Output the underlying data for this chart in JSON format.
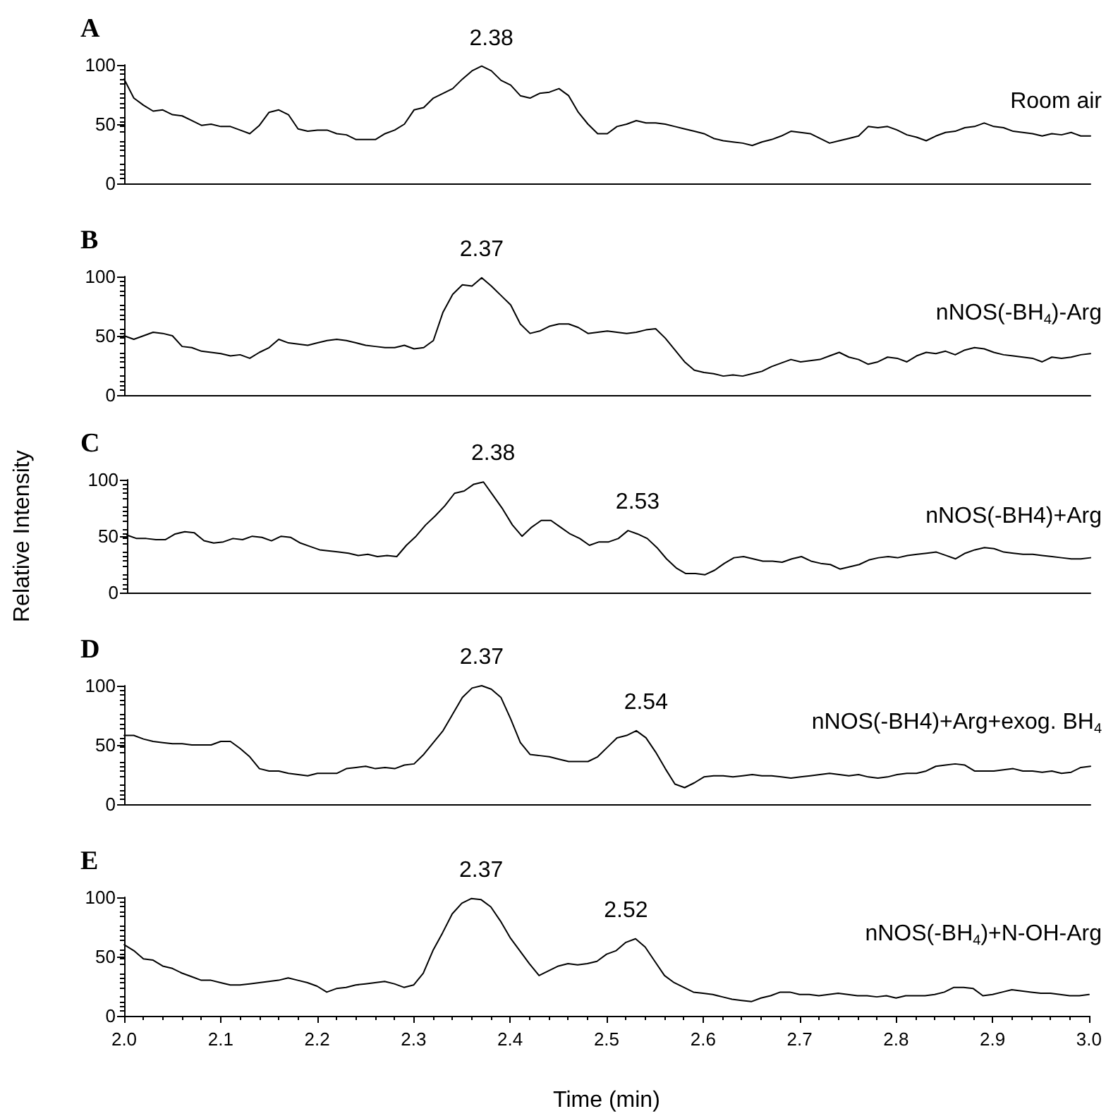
{
  "chart_data": [
    {
      "type": "line",
      "title": "A",
      "xlim": [
        2,
        3
      ],
      "ylim": [
        0,
        100
      ],
      "yticks": [
        0,
        50,
        100
      ],
      "tick_labels": "y",
      "grid": false,
      "marker": "none",
      "line_style": "solid",
      "annotations": [
        {
          "text": "2.38",
          "x": 2.38,
          "y": 98
        }
      ],
      "series": [
        {
          "name": "Room air",
          "color": "#000000",
          "x": [
            2.0,
            2.01,
            2.02,
            2.03,
            2.04,
            2.05,
            2.06,
            2.07,
            2.08,
            2.09,
            2.1,
            2.11,
            2.12,
            2.13,
            2.14,
            2.15,
            2.16,
            2.17,
            2.18,
            2.19,
            2.2,
            2.21,
            2.22,
            2.23,
            2.24,
            2.25,
            2.26,
            2.27,
            2.28,
            2.29,
            2.3,
            2.31,
            2.32,
            2.33,
            2.34,
            2.35,
            2.36,
            2.37,
            2.38,
            2.39,
            2.4,
            2.41,
            2.42,
            2.43,
            2.44,
            2.45,
            2.46,
            2.47,
            2.48,
            2.49,
            2.5,
            2.51,
            2.52,
            2.53,
            2.54,
            2.55,
            2.56,
            2.57,
            2.58,
            2.59,
            2.6,
            2.61,
            2.62,
            2.63,
            2.64,
            2.65,
            2.66,
            2.67,
            2.68,
            2.69,
            2.7,
            2.71,
            2.72,
            2.73,
            2.74,
            2.75,
            2.76,
            2.77,
            2.78,
            2.79,
            2.8,
            2.81,
            2.82,
            2.83,
            2.84,
            2.85,
            2.86,
            2.87,
            2.88,
            2.89,
            2.9,
            2.91,
            2.92,
            2.93,
            2.94,
            2.95,
            2.96,
            2.97,
            2.98,
            2.99,
            3.0
          ],
          "values": [
            88,
            72,
            66,
            61,
            62,
            58,
            57,
            53,
            49,
            50,
            48,
            48,
            45,
            42,
            49,
            60,
            62,
            58,
            46,
            44,
            45,
            45,
            42,
            41,
            37,
            37,
            37,
            42,
            45,
            50,
            62,
            64,
            72,
            76,
            80,
            88,
            95,
            99,
            95,
            87,
            83,
            74,
            72,
            76,
            77,
            80,
            74,
            60,
            50,
            42,
            42,
            48,
            50,
            53,
            51,
            51,
            50,
            48,
            46,
            44,
            42,
            38,
            36,
            35,
            34,
            32,
            35,
            37,
            40,
            44,
            43,
            42,
            38,
            34,
            36,
            38,
            40,
            48,
            47,
            48,
            45,
            41,
            39,
            36,
            40,
            43,
            44,
            47,
            48,
            51,
            48,
            47,
            44,
            43,
            42,
            40,
            42,
            41,
            43,
            40,
            40
          ]
        }
      ]
    },
    {
      "type": "line",
      "title": "B",
      "xlim": [
        2,
        3
      ],
      "ylim": [
        0,
        100
      ],
      "yticks": [
        0,
        50,
        100
      ],
      "tick_labels": "y",
      "grid": false,
      "marker": "none",
      "line_style": "solid",
      "annotations": [
        {
          "text": "2.37",
          "x": 2.37,
          "y": 99
        }
      ],
      "series": [
        {
          "name": "nNOS(-BH$_{4}$)-Arg",
          "color": "#000000",
          "x": [
            2.0,
            2.01,
            2.02,
            2.03,
            2.04,
            2.05,
            2.06,
            2.07,
            2.08,
            2.09,
            2.1,
            2.11,
            2.12,
            2.13,
            2.14,
            2.15,
            2.16,
            2.17,
            2.18,
            2.19,
            2.2,
            2.21,
            2.22,
            2.23,
            2.24,
            2.25,
            2.26,
            2.27,
            2.28,
            2.29,
            2.3,
            2.31,
            2.32,
            2.33,
            2.34,
            2.35,
            2.36,
            2.37,
            2.38,
            2.39,
            2.4,
            2.41,
            2.42,
            2.43,
            2.44,
            2.45,
            2.46,
            2.47,
            2.48,
            2.49,
            2.5,
            2.51,
            2.52,
            2.53,
            2.54,
            2.55,
            2.56,
            2.57,
            2.58,
            2.59,
            2.6,
            2.61,
            2.62,
            2.63,
            2.64,
            2.65,
            2.66,
            2.67,
            2.68,
            2.69,
            2.7,
            2.71,
            2.72,
            2.73,
            2.74,
            2.75,
            2.76,
            2.77,
            2.78,
            2.79,
            2.8,
            2.81,
            2.82,
            2.83,
            2.84,
            2.85,
            2.86,
            2.87,
            2.88,
            2.89,
            2.9,
            2.91,
            2.92,
            2.93,
            2.94,
            2.95,
            2.96,
            2.97,
            2.98,
            2.99,
            3.0
          ],
          "values": [
            50,
            47,
            50,
            53,
            52,
            50,
            41,
            40,
            37,
            36,
            35,
            33,
            34,
            31,
            36,
            40,
            47,
            44,
            43,
            42,
            44,
            46,
            47,
            46,
            44,
            42,
            41,
            40,
            40,
            42,
            39,
            40,
            46,
            70,
            85,
            93,
            92,
            99,
            92,
            84,
            76,
            60,
            52,
            54,
            58,
            60,
            60,
            57,
            52,
            53,
            54,
            53,
            52,
            53,
            55,
            56,
            48,
            38,
            28,
            21,
            19,
            18,
            16,
            17,
            16,
            18,
            20,
            24,
            27,
            30,
            28,
            29,
            30,
            33,
            36,
            32,
            30,
            26,
            28,
            32,
            31,
            28,
            33,
            36,
            35,
            37,
            34,
            38,
            40,
            39,
            36,
            34,
            33,
            32,
            31,
            28,
            32,
            31,
            32,
            34,
            35
          ]
        }
      ]
    },
    {
      "type": "line",
      "title": "C",
      "ylabel": "Relative Intensity",
      "xlim": [
        2,
        3
      ],
      "ylim": [
        0,
        100
      ],
      "yticks": [
        0,
        50,
        100
      ],
      "tick_labels": "y",
      "grid": false,
      "marker": "none",
      "line_style": "solid",
      "annotations": [
        {
          "text": "2.38",
          "x": 2.38,
          "y": 98
        },
        {
          "text": "2.53",
          "x": 2.53,
          "y": 55
        }
      ],
      "series": [
        {
          "name": "nNOS(-BH4)+Arg",
          "color": "#000000",
          "x": [
            2.0,
            2.01,
            2.02,
            2.03,
            2.04,
            2.05,
            2.06,
            2.07,
            2.08,
            2.09,
            2.1,
            2.11,
            2.12,
            2.13,
            2.14,
            2.15,
            2.16,
            2.17,
            2.18,
            2.19,
            2.2,
            2.21,
            2.22,
            2.23,
            2.24,
            2.25,
            2.26,
            2.27,
            2.28,
            2.29,
            2.3,
            2.31,
            2.32,
            2.33,
            2.34,
            2.35,
            2.36,
            2.37,
            2.38,
            2.39,
            2.4,
            2.41,
            2.42,
            2.43,
            2.44,
            2.45,
            2.46,
            2.47,
            2.48,
            2.49,
            2.5,
            2.51,
            2.52,
            2.53,
            2.54,
            2.55,
            2.56,
            2.57,
            2.58,
            2.59,
            2.6,
            2.61,
            2.62,
            2.63,
            2.64,
            2.65,
            2.66,
            2.67,
            2.68,
            2.69,
            2.7,
            2.71,
            2.72,
            2.73,
            2.74,
            2.75,
            2.76,
            2.77,
            2.78,
            2.79,
            2.8,
            2.81,
            2.82,
            2.83,
            2.84,
            2.85,
            2.86,
            2.87,
            2.88,
            2.89,
            2.9,
            2.91,
            2.92,
            2.93,
            2.94,
            2.95,
            2.96,
            2.97,
            2.98,
            2.99,
            3.0
          ],
          "values": [
            51,
            48,
            48,
            47,
            47,
            52,
            54,
            53,
            46,
            44,
            45,
            48,
            47,
            50,
            49,
            46,
            50,
            49,
            44,
            41,
            38,
            37,
            36,
            35,
            33,
            34,
            32,
            33,
            32,
            42,
            50,
            60,
            68,
            77,
            88,
            90,
            96,
            98,
            86,
            74,
            60,
            50,
            58,
            64,
            64,
            58,
            52,
            48,
            42,
            45,
            45,
            48,
            55,
            52,
            48,
            40,
            30,
            22,
            17,
            17,
            16,
            20,
            26,
            31,
            32,
            30,
            28,
            28,
            27,
            30,
            32,
            28,
            26,
            25,
            21,
            23,
            25,
            29,
            31,
            32,
            31,
            33,
            34,
            35,
            36,
            33,
            30,
            35,
            38,
            40,
            39,
            36,
            35,
            34,
            34,
            33,
            32,
            31,
            30,
            30,
            31
          ]
        }
      ]
    },
    {
      "type": "line",
      "title": "D",
      "xlim": [
        2,
        3
      ],
      "ylim": [
        0,
        100
      ],
      "yticks": [
        0,
        50,
        100
      ],
      "tick_labels": "y",
      "grid": false,
      "marker": "none",
      "line_style": "solid",
      "annotations": [
        {
          "text": "2.37",
          "x": 2.37,
          "y": 100
        },
        {
          "text": "2.54",
          "x": 2.54,
          "y": 62
        }
      ],
      "series": [
        {
          "name": "nNOS(-BH4)+Arg+exog. BH$_{4}$",
          "color": "#000000",
          "x": [
            2.0,
            2.01,
            2.02,
            2.03,
            2.04,
            2.05,
            2.06,
            2.07,
            2.08,
            2.09,
            2.1,
            2.11,
            2.12,
            2.13,
            2.14,
            2.15,
            2.16,
            2.17,
            2.18,
            2.19,
            2.2,
            2.21,
            2.22,
            2.23,
            2.24,
            2.25,
            2.26,
            2.27,
            2.28,
            2.29,
            2.3,
            2.31,
            2.32,
            2.33,
            2.34,
            2.35,
            2.36,
            2.37,
            2.38,
            2.39,
            2.4,
            2.41,
            2.42,
            2.43,
            2.44,
            2.45,
            2.46,
            2.47,
            2.48,
            2.49,
            2.5,
            2.51,
            2.52,
            2.53,
            2.54,
            2.55,
            2.56,
            2.57,
            2.58,
            2.59,
            2.6,
            2.61,
            2.62,
            2.63,
            2.64,
            2.65,
            2.66,
            2.67,
            2.68,
            2.69,
            2.7,
            2.71,
            2.72,
            2.73,
            2.74,
            2.75,
            2.76,
            2.77,
            2.78,
            2.79,
            2.8,
            2.81,
            2.82,
            2.83,
            2.84,
            2.85,
            2.86,
            2.87,
            2.88,
            2.89,
            2.9,
            2.91,
            2.92,
            2.93,
            2.94,
            2.95,
            2.96,
            2.97,
            2.98,
            2.99,
            3.0
          ],
          "values": [
            58,
            58,
            55,
            53,
            52,
            51,
            51,
            50,
            50,
            50,
            53,
            53,
            47,
            40,
            30,
            28,
            28,
            26,
            25,
            24,
            26,
            26,
            26,
            30,
            31,
            32,
            30,
            31,
            30,
            33,
            34,
            42,
            52,
            62,
            76,
            90,
            98,
            100,
            97,
            90,
            72,
            52,
            42,
            41,
            40,
            38,
            36,
            36,
            36,
            40,
            48,
            56,
            58,
            62,
            56,
            44,
            30,
            17,
            14,
            18,
            23,
            24,
            24,
            23,
            24,
            25,
            24,
            24,
            23,
            22,
            23,
            24,
            25,
            26,
            25,
            24,
            25,
            23,
            22,
            23,
            25,
            26,
            26,
            28,
            32,
            33,
            34,
            33,
            28,
            28,
            28,
            29,
            30,
            28,
            28,
            27,
            28,
            26,
            27,
            31,
            32
          ]
        }
      ]
    },
    {
      "type": "line",
      "title": "E",
      "xlabel": "Time (min)",
      "xlim": [
        2,
        3
      ],
      "xticks": [
        {
          "value": 2,
          "label": "2.0"
        },
        2.1,
        2.2,
        2.3,
        2.4,
        2.5,
        2.6,
        2.7,
        2.8,
        2.9,
        {
          "value": 3,
          "label": "3.0"
        }
      ],
      "ylim": [
        0,
        100
      ],
      "yticks": [
        0,
        50,
        100
      ],
      "grid": false,
      "marker": "none",
      "line_style": "solid",
      "annotations": [
        {
          "text": "2.37",
          "x": 2.37,
          "y": 99
        },
        {
          "text": "2.52",
          "x": 2.52,
          "y": 65
        }
      ],
      "series": [
        {
          "name": "nNOS(-BH$_{4}$)+N-OH-Arg",
          "color": "#000000",
          "x": [
            2.0,
            2.01,
            2.02,
            2.03,
            2.04,
            2.05,
            2.06,
            2.07,
            2.08,
            2.09,
            2.1,
            2.11,
            2.12,
            2.13,
            2.14,
            2.15,
            2.16,
            2.17,
            2.18,
            2.19,
            2.2,
            2.21,
            2.22,
            2.23,
            2.24,
            2.25,
            2.26,
            2.27,
            2.28,
            2.29,
            2.3,
            2.31,
            2.32,
            2.33,
            2.34,
            2.35,
            2.36,
            2.37,
            2.38,
            2.39,
            2.4,
            2.41,
            2.42,
            2.43,
            2.44,
            2.45,
            2.46,
            2.47,
            2.48,
            2.49,
            2.5,
            2.51,
            2.52,
            2.53,
            2.54,
            2.55,
            2.56,
            2.57,
            2.58,
            2.59,
            2.6,
            2.61,
            2.62,
            2.63,
            2.64,
            2.65,
            2.66,
            2.67,
            2.68,
            2.69,
            2.7,
            2.71,
            2.72,
            2.73,
            2.74,
            2.75,
            2.76,
            2.77,
            2.78,
            2.79,
            2.8,
            2.81,
            2.82,
            2.83,
            2.84,
            2.85,
            2.86,
            2.87,
            2.88,
            2.89,
            2.9,
            2.91,
            2.92,
            2.93,
            2.94,
            2.95,
            2.96,
            2.97,
            2.98,
            2.99,
            3.0
          ],
          "values": [
            60,
            55,
            48,
            47,
            42,
            40,
            36,
            33,
            30,
            30,
            28,
            26,
            26,
            27,
            28,
            29,
            30,
            32,
            30,
            28,
            25,
            20,
            23,
            24,
            26,
            27,
            28,
            29,
            27,
            24,
            26,
            36,
            55,
            70,
            86,
            95,
            99,
            98,
            92,
            80,
            66,
            55,
            44,
            34,
            38,
            42,
            44,
            43,
            44,
            46,
            52,
            55,
            62,
            65,
            58,
            46,
            34,
            28,
            24,
            20,
            19,
            18,
            16,
            14,
            13,
            12,
            15,
            17,
            20,
            20,
            18,
            18,
            17,
            18,
            19,
            18,
            17,
            17,
            16,
            17,
            15,
            17,
            17,
            17,
            18,
            20,
            24,
            24,
            23,
            17,
            18,
            20,
            22,
            21,
            20,
            19,
            19,
            18,
            17,
            17,
            18
          ]
        }
      ]
    }
  ]
}
